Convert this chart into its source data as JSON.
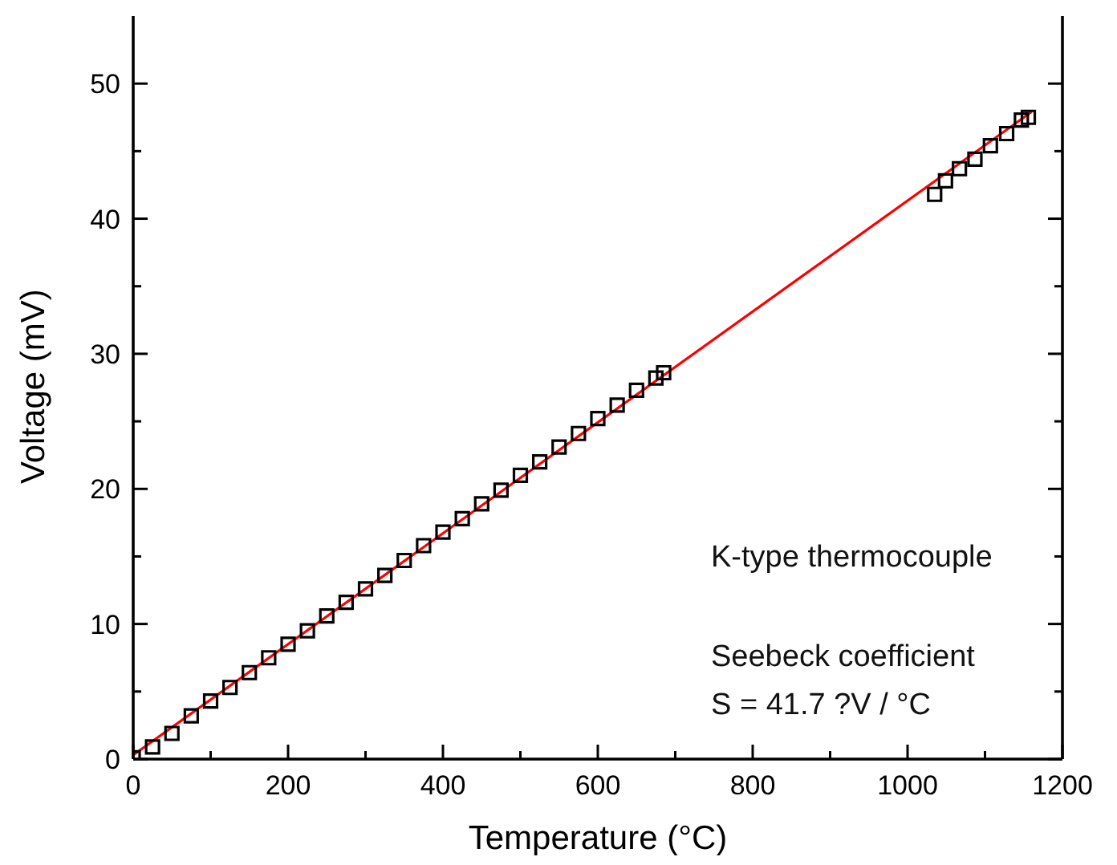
{
  "chart_data": {
    "type": "scatter",
    "xlabel": "Temperature (°C)",
    "ylabel": "Voltage (mV)",
    "annotations": [
      "K-type thermocouple",
      "Seebeck coefficient",
      "S = 41.7 ?V / °C"
    ],
    "xlim": [
      0,
      1200
    ],
    "ylim": [
      0,
      55
    ],
    "xticks": [
      0,
      {
        "value": 100,
        "label": null
      },
      200,
      {
        "value": 300,
        "label": null
      },
      400,
      {
        "value": 500,
        "label": null
      },
      600,
      {
        "value": 700,
        "label": null
      },
      800,
      {
        "value": 900,
        "label": null
      },
      1000,
      {
        "value": 1100,
        "label": null
      },
      1200
    ],
    "yticks": [
      0,
      {
        "value": 5,
        "label": null
      },
      10,
      {
        "value": 15,
        "label": null
      },
      20,
      {
        "value": 25,
        "label": null
      },
      30,
      {
        "value": 35,
        "label": null
      },
      40,
      {
        "value": 45,
        "label": null
      },
      50
    ],
    "grid": false,
    "legend": false,
    "series": [
      {
        "marker": "square",
        "color": "#000000",
        "x": [
          0,
          25,
          50,
          75,
          100,
          125,
          150,
          175,
          200,
          225,
          250,
          275,
          300,
          325,
          350,
          375,
          400,
          425,
          450,
          475,
          500,
          525,
          550,
          575,
          600,
          625,
          650,
          675,
          685,
          1035,
          1049,
          1067,
          1087,
          1107,
          1128,
          1147,
          1156
        ],
        "values": [
          0.1,
          0.9,
          1.9,
          3.2,
          4.3,
          5.3,
          6.4,
          7.5,
          8.5,
          9.5,
          10.6,
          11.6,
          12.6,
          13.6,
          14.7,
          15.8,
          16.8,
          17.8,
          18.9,
          19.9,
          21.0,
          22.0,
          23.1,
          24.1,
          25.2,
          26.2,
          27.3,
          28.2,
          28.6,
          41.8,
          42.8,
          43.7,
          44.4,
          45.4,
          46.3,
          47.3,
          47.5
        ]
      },
      {
        "type": "line",
        "color": "#ff0000",
        "x": [
          0,
          1160
        ],
        "values": [
          0.3,
          47.9
        ]
      }
    ]
  }
}
